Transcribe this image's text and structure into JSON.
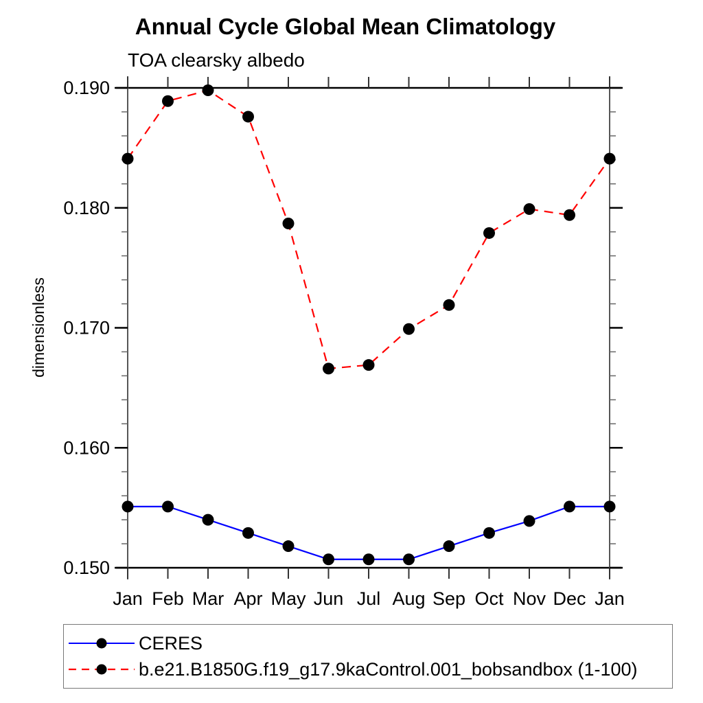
{
  "title": "Annual Cycle Global Mean Climatology",
  "subtitle": "TOA clearsky albedo",
  "chart_data": {
    "type": "line",
    "title": "Annual Cycle Global Mean Climatology",
    "subtitle": "TOA clearsky albedo",
    "xlabel": "",
    "ylabel": "dimensionless",
    "x_tick_labels": [
      "Jan",
      "Feb",
      "Mar",
      "Apr",
      "May",
      "Jun",
      "Jul",
      "Aug",
      "Sep",
      "Oct",
      "Nov",
      "Dec",
      "Jan"
    ],
    "y_ticks": [
      0.15,
      0.16,
      0.17,
      0.18,
      0.19
    ],
    "y_tick_labels": [
      "0.150",
      "0.160",
      "0.170",
      "0.180",
      "0.190"
    ],
    "ylim": [
      0.15,
      0.19
    ],
    "minor_tick_step": 0.002,
    "grid": false,
    "legend_position": "bottom",
    "series": [
      {
        "name": "CERES",
        "color": "#0000ff",
        "line_style": "solid",
        "marker": "filled-circle",
        "marker_color": "#000000",
        "values": [
          0.1551,
          0.1551,
          0.154,
          0.1529,
          0.1518,
          0.1507,
          0.1507,
          0.1507,
          0.1518,
          0.1529,
          0.1539,
          0.1551,
          0.1551
        ]
      },
      {
        "name": "b.e21.B1850G.f19_g17.9kaControl.001_bobsandbox (1-100)",
        "color": "#ff0000",
        "line_style": "dashed",
        "marker": "filled-circle",
        "marker_color": "#000000",
        "values": [
          0.1841,
          0.1889,
          0.1898,
          0.1876,
          0.1787,
          0.1666,
          0.1669,
          0.1699,
          0.1719,
          0.1779,
          0.1799,
          0.1794,
          0.1841
        ]
      }
    ]
  }
}
